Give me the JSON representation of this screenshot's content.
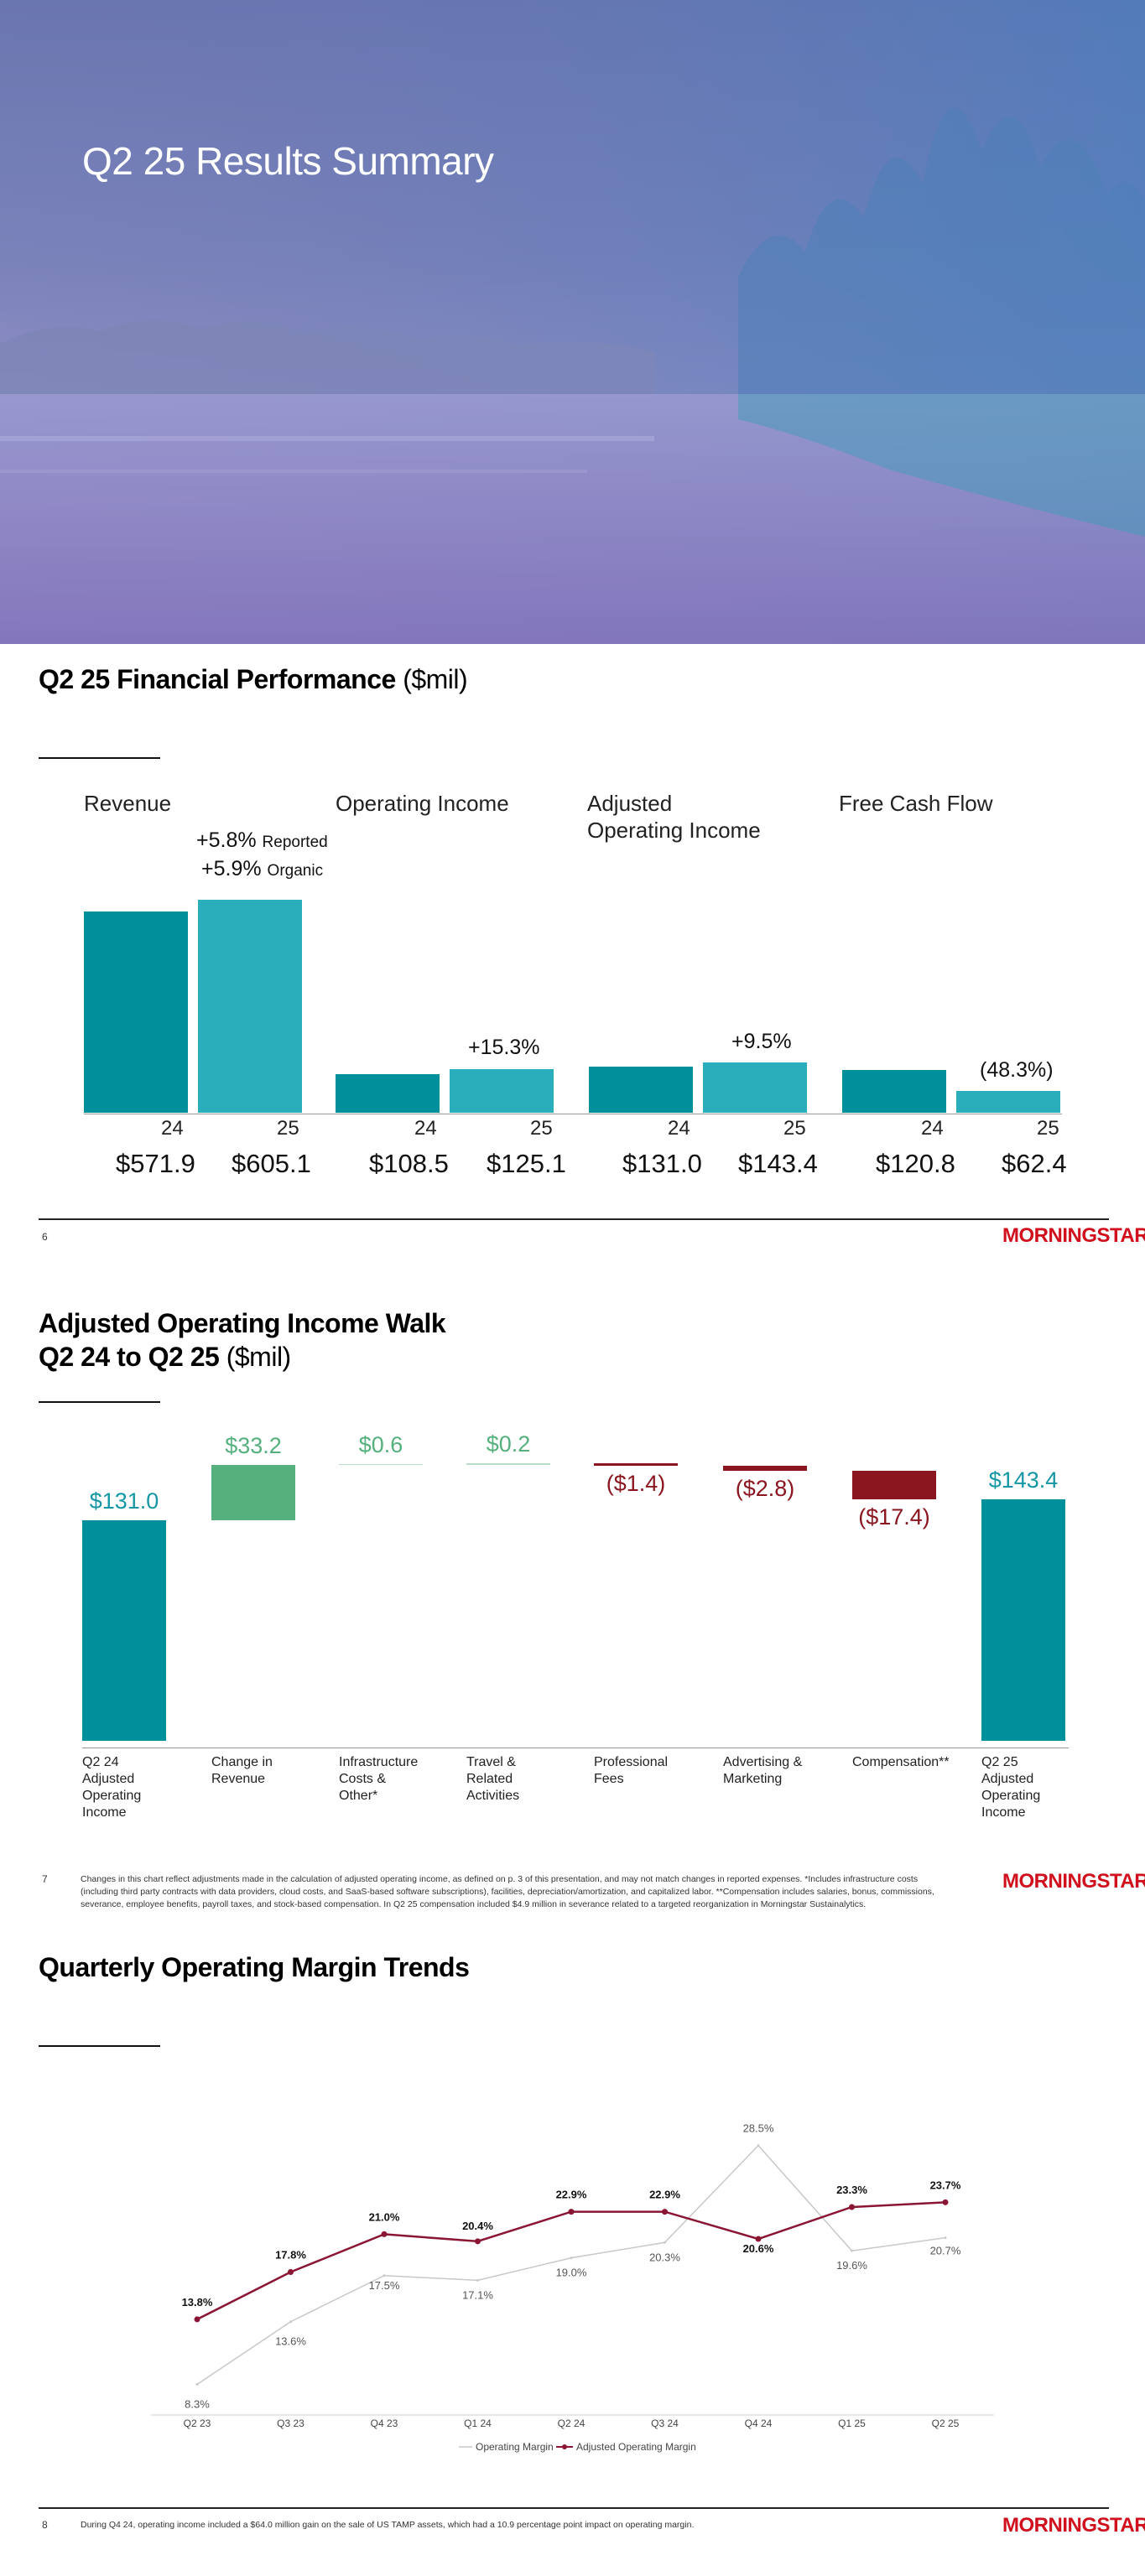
{
  "hero": {
    "title": "Q2 25 Results Summary"
  },
  "performance": {
    "title": "Q2 25 Financial Performance",
    "unit": "($mil)",
    "metrics": [
      {
        "label_line1": "Revenue",
        "label_line2": "",
        "change_line1": "+5.8%",
        "change_line1_note": "Reported",
        "change_line2": "+5.9%",
        "change_line2_note": "Organic",
        "prior_year": "24",
        "current_year": "25",
        "prior_value": "$571.9",
        "current_value": "$605.1",
        "prior_num": 571.9,
        "current_num": 605.1
      },
      {
        "label_line1": "Operating Income",
        "label_line2": "",
        "change_line1": "+15.3%",
        "prior_year": "24",
        "current_year": "25",
        "prior_value": "$108.5",
        "current_value": "$125.1",
        "prior_num": 108.5,
        "current_num": 125.1
      },
      {
        "label_line1": "Adjusted",
        "label_line2": "Operating Income",
        "change_line1": "+9.5%",
        "prior_year": "24",
        "current_year": "25",
        "prior_value": "$131.0",
        "current_value": "$143.4",
        "prior_num": 131.0,
        "current_num": 143.4
      },
      {
        "label_line1": "Free Cash Flow",
        "label_line2": "",
        "change_line1": "(48.3%)",
        "prior_year": "24",
        "current_year": "25",
        "prior_value": "$120.8",
        "current_value": "$62.4",
        "prior_num": 120.8,
        "current_num": 62.4
      }
    ],
    "page_number": "6",
    "logo": "MORNINGSTAR"
  },
  "walk": {
    "title_line1": "Adjusted Operating Income Walk",
    "title_line2": "Q2 24 to Q2 25",
    "unit": "($mil)",
    "steps": [
      {
        "label": "Q2 24 Adjusted Operating Income",
        "value": "$131.0",
        "num": 131.0,
        "kind": "total"
      },
      {
        "label": "Change in Revenue",
        "value": "$33.2",
        "num": 33.2,
        "kind": "increase"
      },
      {
        "label": "Infrastructure Costs & Other*",
        "value": "$0.6",
        "num": 0.6,
        "kind": "increase"
      },
      {
        "label": "Travel & Related Activities",
        "value": "$0.2",
        "num": 0.2,
        "kind": "increase"
      },
      {
        "label": "Professional Fees",
        "value": "($1.4)",
        "num": -1.4,
        "kind": "decrease"
      },
      {
        "label": "Advertising & Marketing",
        "value": "($2.8)",
        "num": -2.8,
        "kind": "decrease"
      },
      {
        "label": "Compensation**",
        "value": "($17.4)",
        "num": -17.4,
        "kind": "decrease"
      },
      {
        "label": "Q2 25 Adjusted Operating Income",
        "value": "$143.4",
        "num": 143.4,
        "kind": "total"
      }
    ],
    "page_number": "7",
    "footnote": "Changes in this chart reflect adjustments made in the calculation of adjusted operating income, as defined on p. 3 of this presentation, and may not match changes in reported expenses. *Includes infrastructure costs (including third party contracts with data providers, cloud costs, and SaaS-based software subscriptions), facilities, depreciation/amortization, and capitalized labor. **Compensation includes salaries, bonus, commissions, severance, employee benefits, payroll taxes, and stock-based compensation. In Q2 25 compensation included $4.9 million in severance related to a targeted reorganization in Morningstar Sustainalytics.",
    "logo": "MORNINGSTAR"
  },
  "margins": {
    "title": "Quarterly Operating Margin Trends",
    "page_number": "8",
    "footnote": "During Q4 24, operating income included a $64.0 million gain on the sale of US TAMP assets, which had a 10.9 percentage point impact on operating margin.",
    "logo": "MORNINGSTAR"
  },
  "chart_data": {
    "type": "line",
    "title": "Quarterly Operating Margin Trends",
    "categories": [
      "Q2 23",
      "Q3 23",
      "Q4 23",
      "Q1 24",
      "Q2 24",
      "Q3 24",
      "Q4 24",
      "Q1 25",
      "Q2 25"
    ],
    "series": [
      {
        "name": "Operating Margin",
        "values": [
          8.3,
          13.6,
          17.5,
          17.1,
          19.0,
          20.3,
          28.5,
          19.6,
          20.7
        ],
        "labels": [
          "8.3%",
          "13.6%",
          "17.5%",
          "17.1%",
          "19.0%",
          "20.3%",
          "28.5%",
          "19.6%",
          "20.7%"
        ],
        "color": "#c8c8c8"
      },
      {
        "name": "Adjusted Operating Margin",
        "values": [
          13.8,
          17.8,
          21.0,
          20.4,
          22.9,
          22.9,
          20.6,
          23.3,
          23.7
        ],
        "labels": [
          "13.8%",
          "17.8%",
          "21.0%",
          "20.4%",
          "22.9%",
          "22.9%",
          "20.6%",
          "23.3%",
          "23.7%"
        ],
        "color": "#8a1633"
      }
    ],
    "ylim": [
      0,
      32
    ],
    "legend": "bottom"
  }
}
